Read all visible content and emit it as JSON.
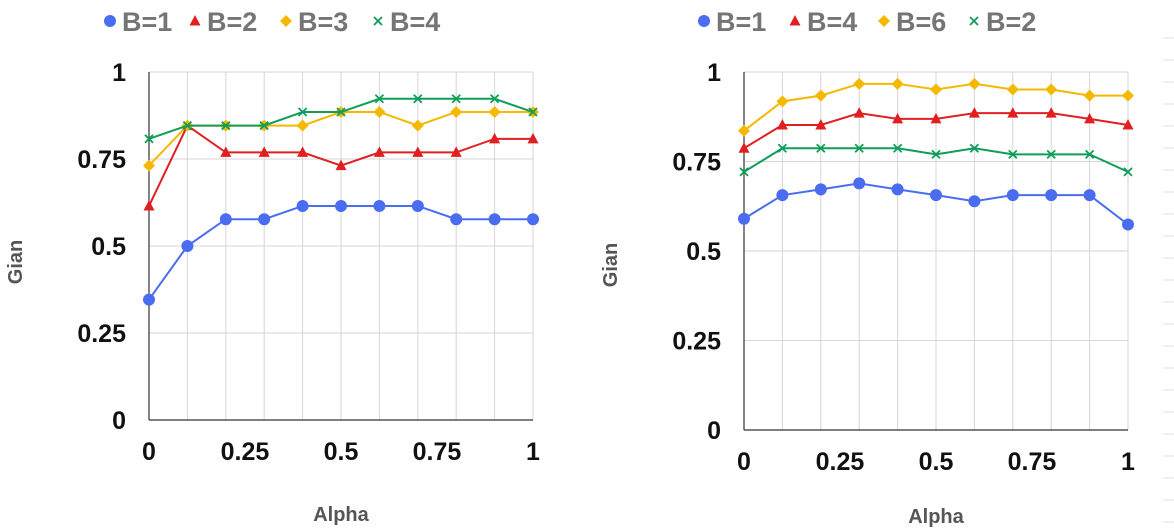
{
  "chart_data": [
    {
      "type": "line",
      "title": "",
      "xlabel": "Alpha",
      "ylabel": "Gian",
      "x": [
        0,
        0.1,
        0.2,
        0.3,
        0.4,
        0.5,
        0.6,
        0.7,
        0.8,
        0.9,
        1
      ],
      "xticks": [
        "0",
        "0.25",
        "0.5",
        "0.75",
        "1"
      ],
      "yticks": [
        "0",
        "0.25",
        "0.5",
        "0.75",
        "1"
      ],
      "xlim": [
        0,
        1
      ],
      "ylim": [
        0,
        1
      ],
      "grid": true,
      "legend_position": "top",
      "series": [
        {
          "name": "B=1",
          "color": "#4a6cf0",
          "marker": "circle",
          "values": [
            0.346,
            0.5,
            0.577,
            0.577,
            0.615,
            0.615,
            0.615,
            0.615,
            0.577,
            0.577,
            0.577
          ]
        },
        {
          "name": "B=2",
          "color": "#e02020",
          "marker": "triangle",
          "values": [
            0.615,
            0.846,
            0.769,
            0.769,
            0.769,
            0.731,
            0.769,
            0.769,
            0.769,
            0.808,
            0.808
          ]
        },
        {
          "name": "B=3",
          "color": "#f5b800",
          "marker": "diamond",
          "values": [
            0.731,
            0.846,
            0.846,
            0.846,
            0.846,
            0.885,
            0.885,
            0.846,
            0.885,
            0.885,
            0.885
          ]
        },
        {
          "name": "B=4",
          "color": "#0f9d58",
          "marker": "x",
          "values": [
            0.808,
            0.846,
            0.846,
            0.846,
            0.885,
            0.885,
            0.923,
            0.923,
            0.923,
            0.923,
            0.885
          ]
        }
      ]
    },
    {
      "type": "line",
      "title": "",
      "xlabel": "Alpha",
      "ylabel": "Gian",
      "x": [
        0,
        0.1,
        0.2,
        0.3,
        0.4,
        0.5,
        0.6,
        0.7,
        0.8,
        0.9,
        1
      ],
      "xticks": [
        "0",
        "0.25",
        "0.5",
        "0.75",
        "1"
      ],
      "yticks": [
        "0",
        "0.25",
        "0.5",
        "0.75",
        "1"
      ],
      "xlim": [
        0,
        1
      ],
      "ylim": [
        0,
        1
      ],
      "grid": true,
      "legend_position": "top",
      "series": [
        {
          "name": "B=1",
          "color": "#4a6cf0",
          "marker": "circle",
          "values": [
            0.59,
            0.656,
            0.672,
            0.689,
            0.672,
            0.656,
            0.639,
            0.656,
            0.656,
            0.656,
            0.574
          ]
        },
        {
          "name": "B=4",
          "color": "#e02020",
          "marker": "triangle",
          "values": [
            0.787,
            0.852,
            0.852,
            0.885,
            0.869,
            0.869,
            0.885,
            0.885,
            0.885,
            0.869,
            0.852
          ]
        },
        {
          "name": "B=6",
          "color": "#f5b800",
          "marker": "diamond",
          "values": [
            0.836,
            0.918,
            0.934,
            0.967,
            0.967,
            0.951,
            0.967,
            0.951,
            0.951,
            0.934,
            0.934
          ]
        },
        {
          "name": "B=2",
          "color": "#0f9d58",
          "marker": "x",
          "values": [
            0.721,
            0.787,
            0.787,
            0.787,
            0.787,
            0.77,
            0.787,
            0.77,
            0.77,
            0.77,
            0.721
          ]
        }
      ]
    }
  ]
}
